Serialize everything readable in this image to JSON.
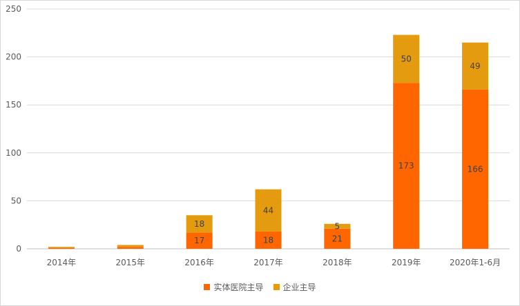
{
  "chart_data": {
    "type": "bar",
    "stacked": true,
    "categories": [
      "2014年",
      "2015年",
      "2016年",
      "2017年",
      "2018年",
      "2019年",
      "2020年1-6月"
    ],
    "series": [
      {
        "name": "实体医院主导",
        "color": "#ff6600",
        "values": [
          1,
          2,
          17,
          18,
          21,
          173,
          166
        ],
        "labels": [
          "",
          "",
          "17",
          "18",
          "21",
          "173",
          "166"
        ]
      },
      {
        "name": "企业主导",
        "color": "#e49b0f",
        "values": [
          1,
          2,
          18,
          44,
          5,
          50,
          49
        ],
        "labels": [
          "",
          "",
          "18",
          "44",
          "5",
          "50",
          "49"
        ]
      }
    ],
    "ylim": [
      0,
      250
    ],
    "yticks": [
      0,
      50,
      100,
      150,
      200,
      250
    ],
    "grid": true,
    "legend_position": "bottom"
  }
}
